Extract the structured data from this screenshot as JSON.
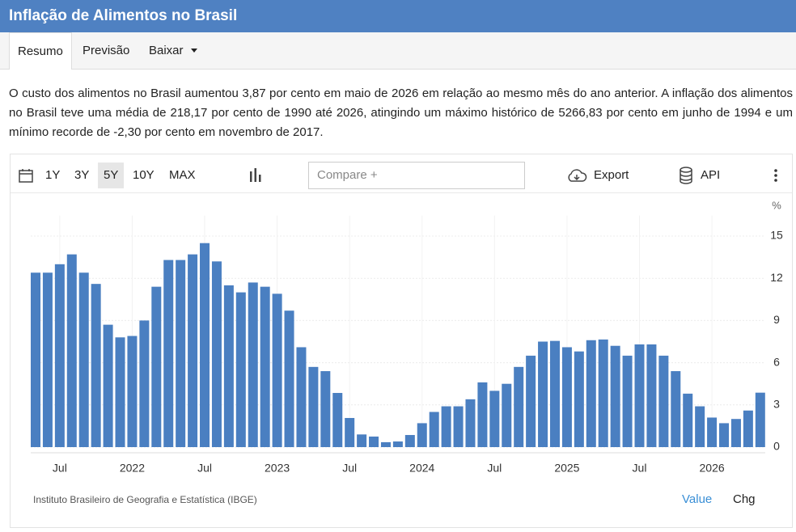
{
  "header": {
    "title": "Inflação de Alimentos no Brasil"
  },
  "tabs": [
    "Resumo",
    "Previsão",
    "Baixar"
  ],
  "summary": "O custo dos alimentos no Brasil aumentou 3,87 por cento em maio de 2026 em relação ao mesmo mês do ano anterior. A inflação dos alimentos no Brasil teve uma média de 218,17 por cento de 1990 até 2026, atingindo um máximo histórico de 5266,83 por cento em junho de 1994 e um mínimo recorde de -2,30 por cento em novembro de 2017.",
  "toolbar": {
    "ranges": [
      "1Y",
      "3Y",
      "5Y",
      "10Y",
      "MAX"
    ],
    "active_range": "5Y",
    "compare": "Compare +",
    "export": "Export",
    "api": "API"
  },
  "chart_data": {
    "type": "bar",
    "unit": "%",
    "color": "#4a7fc1",
    "categories": [
      null,
      null,
      "Jul",
      null,
      null,
      null,
      null,
      null,
      "2022",
      null,
      null,
      null,
      null,
      null,
      "Jul",
      null,
      null,
      null,
      null,
      null,
      "2023",
      null,
      null,
      null,
      null,
      null,
      "Jul",
      null,
      null,
      null,
      null,
      null,
      "2024",
      null,
      null,
      null,
      null,
      null,
      "Jul",
      null,
      null,
      null,
      null,
      null,
      "2025",
      null,
      null,
      null,
      null,
      null,
      "Jul",
      null,
      null,
      null,
      null,
      null,
      "2026",
      null,
      null,
      null,
      null
    ],
    "values": [
      12.4,
      12.4,
      13.0,
      13.7,
      12.4,
      11.6,
      8.7,
      7.8,
      7.9,
      9.0,
      11.4,
      13.3,
      13.3,
      13.7,
      14.5,
      13.2,
      11.5,
      11.0,
      11.7,
      11.4,
      10.9,
      9.7,
      7.1,
      5.7,
      5.4,
      3.85,
      2.07,
      0.9,
      0.75,
      0.35,
      0.4,
      0.86,
      1.7,
      2.5,
      2.9,
      2.9,
      3.4,
      4.6,
      4.0,
      4.5,
      5.7,
      6.5,
      7.5,
      7.55,
      7.1,
      6.8,
      7.6,
      7.65,
      7.2,
      6.5,
      7.3,
      7.3,
      6.5,
      5.4,
      3.8,
      2.9,
      2.1,
      1.7,
      2.0,
      2.6,
      3.87
    ],
    "ylim": [
      0,
      16
    ],
    "yticks": [
      0,
      3,
      6,
      9,
      12,
      15
    ],
    "grid": true
  },
  "source": "Instituto Brasileiro de Geografia e Estatística (IBGE)",
  "footer_toggle": [
    "Value",
    "Chg"
  ]
}
